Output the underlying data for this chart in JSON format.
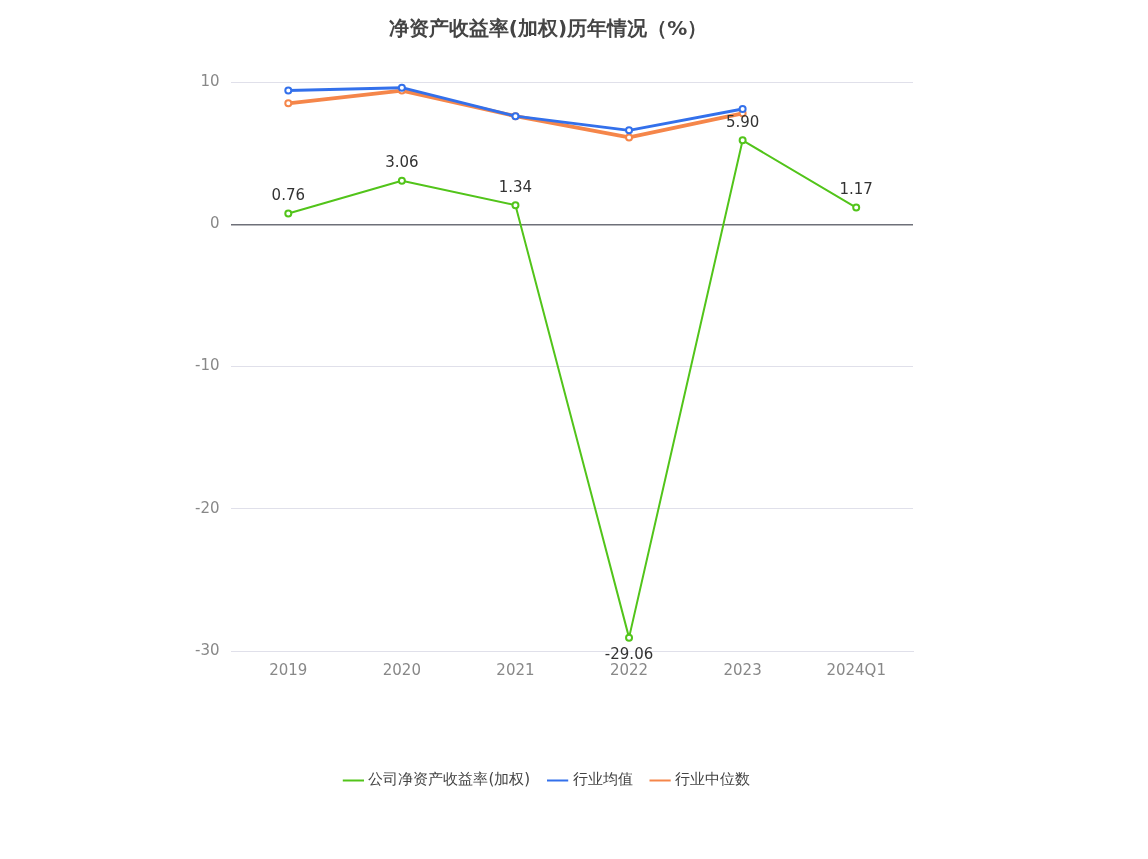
{
  "chart_data": {
    "type": "line",
    "title": "净资产收益率(加权)历年情况（%）",
    "categories": [
      "2019",
      "2020",
      "2021",
      "2022",
      "2023",
      "2024Q1"
    ],
    "series": [
      {
        "name": "公司净资产收益率(加权)",
        "color": "#52c41a",
        "values": [
          0.76,
          3.06,
          1.34,
          -29.06,
          5.9,
          1.17
        ],
        "value_labels": [
          "0.76",
          "3.06",
          "1.34",
          "-29.06",
          "5.90",
          "1.17"
        ]
      },
      {
        "name": "行业均值",
        "color": "#3370eb",
        "values": [
          9.4,
          9.6,
          7.6,
          6.6,
          8.1,
          null
        ]
      },
      {
        "name": "行业中位数",
        "color": "#f5864a",
        "values": [
          8.5,
          9.4,
          7.6,
          6.1,
          7.8,
          null
        ]
      }
    ],
    "ylim": [
      -30,
      10
    ],
    "yticks": [
      10,
      0,
      -10,
      -20,
      -30
    ],
    "grid": "y",
    "legend": "bottom",
    "marker": "circle",
    "line_style": "solid"
  }
}
